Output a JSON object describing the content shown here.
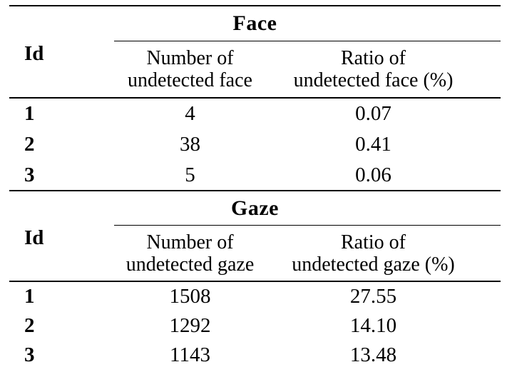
{
  "page": {
    "background_color": "#ffffff",
    "text_color": "#000000",
    "rule_color": "#000000"
  },
  "tables": [
    {
      "title": "Face",
      "id_header": "Id",
      "count_header_line1": "Number of",
      "count_header_line2": "undetected face",
      "ratio_header_line1": "Ratio of",
      "ratio_header_line2": "undetected face (%)",
      "rows": [
        {
          "id": "1",
          "count": "4",
          "ratio": "0.07"
        },
        {
          "id": "2",
          "count": "38",
          "ratio": "0.41"
        },
        {
          "id": "3",
          "count": "5",
          "ratio": "0.06"
        }
      ]
    },
    {
      "title": "Gaze",
      "id_header": "Id",
      "count_header_line1": "Number of",
      "count_header_line2": "undetected gaze",
      "ratio_header_line1": "Ratio of",
      "ratio_header_line2": "undetected gaze (%)",
      "rows": [
        {
          "id": "1",
          "count": "1508",
          "ratio": "27.55"
        },
        {
          "id": "2",
          "count": "1292",
          "ratio": "14.10"
        },
        {
          "id": "3",
          "count": "1143",
          "ratio": "13.48"
        }
      ]
    }
  ]
}
